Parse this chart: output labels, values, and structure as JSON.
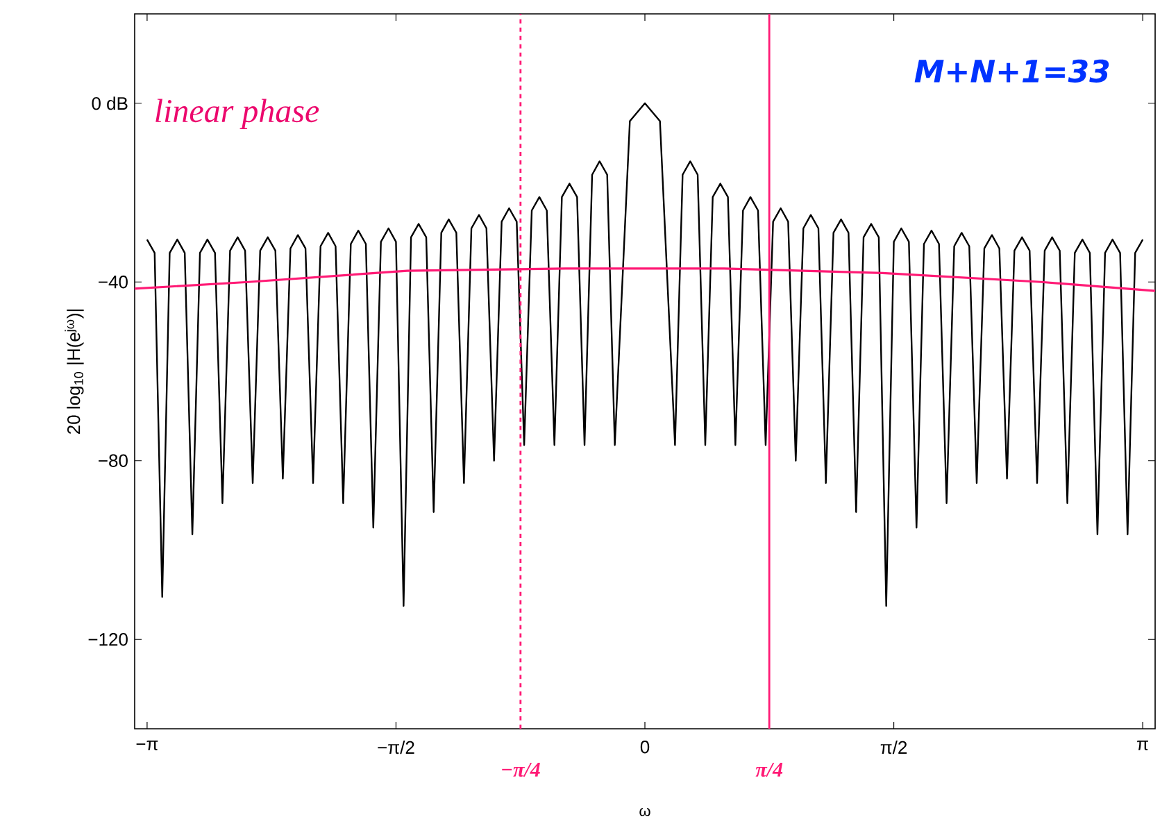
{
  "chart_data": {
    "type": "line",
    "xlabel": "ω",
    "ylabel": "20 log$_{10}$ |H(e$^{jω}$)|",
    "xlim": [
      -3.22,
      3.22
    ],
    "ylim": [
      -140,
      20
    ],
    "xticks": [
      {
        "value": -3.1416,
        "label": "−π"
      },
      {
        "value": -1.5708,
        "label": "−π/2"
      },
      0,
      {
        "value": 1.5708,
        "label": "π/2"
      },
      {
        "value": 3.1416,
        "label": "π"
      }
    ],
    "yticks": [
      {
        "value": 0,
        "label": "0 dB"
      },
      {
        "value": -40,
        "label": "−40"
      },
      {
        "value": -80,
        "label": "−80"
      },
      {
        "value": -120,
        "label": "−120"
      }
    ],
    "series": [
      {
        "color": "#000000",
        "x": [
          -3.142,
          -3.094,
          -3.046,
          -2.999,
          -2.951,
          -2.904,
          -2.856,
          -2.808,
          -2.761,
          -2.713,
          -2.666,
          -2.618,
          -2.57,
          -2.523,
          -2.475,
          -2.428,
          -2.38,
          -2.332,
          -2.285,
          -2.237,
          -2.19,
          -2.142,
          -2.094,
          -2.047,
          -1.999,
          -1.952,
          -1.904,
          -1.856,
          -1.809,
          -1.761,
          -1.714,
          -1.666,
          -1.618,
          -1.571,
          -1.523,
          -1.476,
          -1.428,
          -1.38,
          -1.333,
          -1.285,
          -1.238,
          -1.19,
          -1.142,
          -1.095,
          -1.047,
          -1.0,
          -0.952,
          -0.904,
          -0.857,
          -0.809,
          -0.762,
          -0.714,
          -0.666,
          -0.619,
          -0.571,
          -0.524,
          -0.476,
          -0.428,
          -0.381,
          -0.333,
          -0.286,
          -0.238,
          -0.19,
          -0.095,
          0,
          0.095,
          0.19,
          0.238,
          0.286,
          0.333,
          0.381,
          0.428,
          0.476,
          0.524,
          0.571,
          0.619,
          0.666,
          0.714,
          0.762,
          0.809,
          0.857,
          0.904,
          0.952,
          1.0,
          1.047,
          1.095,
          1.142,
          1.19,
          1.238,
          1.285,
          1.333,
          1.38,
          1.428,
          1.476,
          1.523,
          1.571,
          1.618,
          1.666,
          1.714,
          1.761,
          1.809,
          1.856,
          1.904,
          1.952,
          1.999,
          2.047,
          2.094,
          2.142,
          2.19,
          2.237,
          2.285,
          2.332,
          2.38,
          2.428,
          2.475,
          2.523,
          2.57,
          2.618,
          2.666,
          2.713,
          2.761,
          2.808,
          2.856,
          2.904,
          2.951,
          2.999,
          3.046,
          3.094,
          3.142
        ],
        "values": [
          -30.5,
          -33.5,
          -110.5,
          -33.5,
          -30.5,
          -33.5,
          -96.5,
          -33.5,
          -30.5,
          -33.5,
          -89.5,
          -33,
          -30,
          -33,
          -85,
          -33,
          -30,
          -33,
          -84,
          -32.5,
          -29.5,
          -32.5,
          -85,
          -32,
          -29,
          -32,
          -89.5,
          -31.5,
          -28.5,
          -31.5,
          -95,
          -31,
          -28,
          -31,
          -112.5,
          -30,
          -27,
          -30,
          -91.5,
          -29,
          -26,
          -29,
          -85,
          -28,
          -25,
          -28,
          -80,
          -26.5,
          -23.5,
          -26.5,
          -76.5,
          -24,
          -21,
          -24,
          -76.5,
          -21,
          -18,
          -21,
          -76.5,
          -16,
          -13,
          -16,
          -76.5,
          -4,
          0,
          -4,
          -76.5,
          -16,
          -13,
          -16,
          -76.5,
          -21,
          -18,
          -21,
          -76.5,
          -24,
          -21,
          -24,
          -76.5,
          -26.5,
          -23.5,
          -26.5,
          -80,
          -28,
          -25,
          -28,
          -85,
          -29,
          -26,
          -29,
          -91.5,
          -30,
          -27,
          -30,
          -112.5,
          -31,
          -28,
          -31,
          -95,
          -31.5,
          -28.5,
          -31.5,
          -89.5,
          -32,
          -29,
          -32,
          -85,
          -32.5,
          -29.5,
          -32.5,
          -84,
          -33,
          -30,
          -33,
          -85,
          -33,
          -30,
          -33,
          -89.5,
          -33.5,
          -30.5,
          -33.5,
          -96.5,
          -33.5,
          -30.5,
          -33.5,
          -96.5,
          -33.5,
          -30.5
        ]
      },
      {
        "color": "#ff1a75",
        "x": [
          -3.22,
          -2.5,
          -1.5,
          -0.5,
          0.5,
          1.5,
          2.5,
          3.22
        ],
        "values": [
          -41.5,
          -40,
          -37.5,
          -37,
          -37,
          -38,
          -40,
          -42
        ]
      }
    ],
    "ref_lines": [
      {
        "axis": "x",
        "value": -0.785,
        "label": "−π/4",
        "color": "#ff1a75",
        "line_style": "dashed"
      },
      {
        "axis": "x",
        "value": 0.785,
        "label": "π/4",
        "color": "#ff1a75",
        "line_style": "solid"
      }
    ],
    "annotations": [
      "M+N+1=33",
      "linear phase"
    ]
  }
}
